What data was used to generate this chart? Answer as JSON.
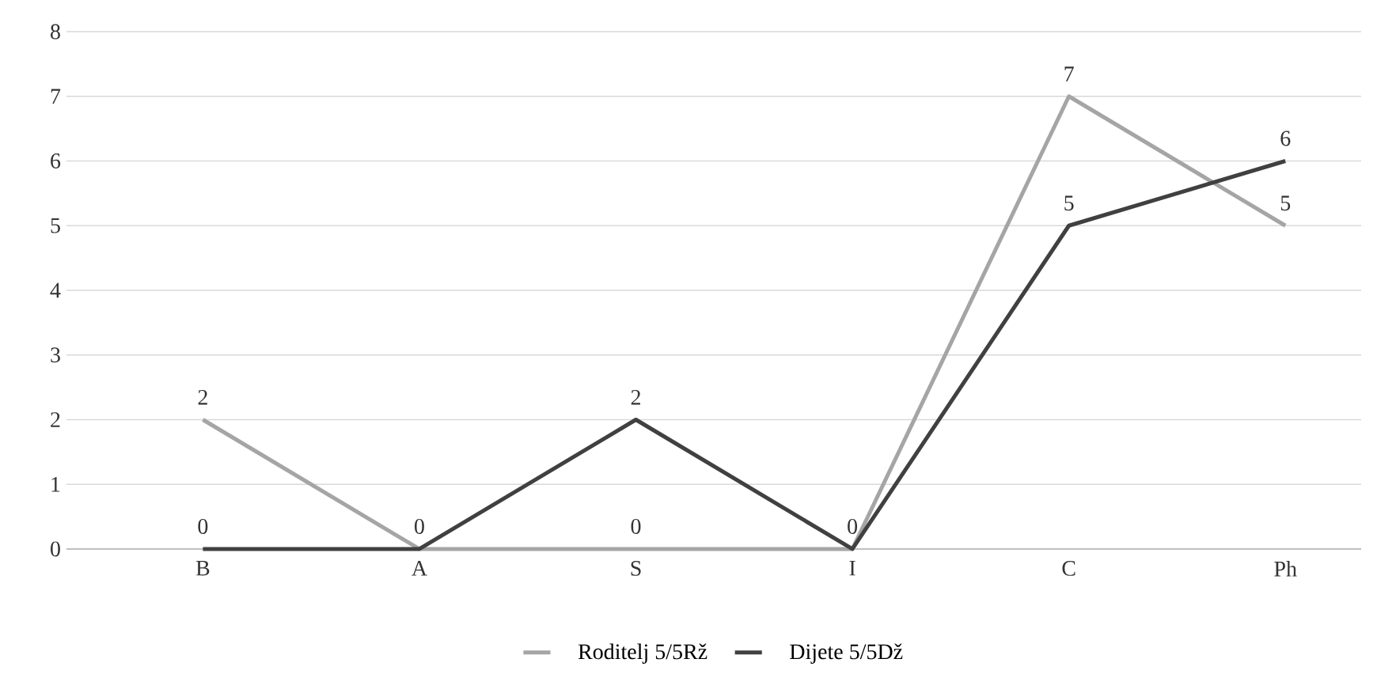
{
  "chart_data": {
    "type": "line",
    "categories": [
      "B",
      "A",
      "S",
      "I",
      "C",
      "Ph"
    ],
    "series": [
      {
        "name": "Roditelj 5/5Rž",
        "color": "#a5a5a5",
        "values": [
          2,
          0,
          0,
          0,
          7,
          5
        ],
        "value_labels": [
          "2",
          null,
          "0",
          null,
          "7",
          "5"
        ]
      },
      {
        "name": "Dijete 5/5Dž",
        "color": "#404040",
        "values": [
          0,
          0,
          2,
          0,
          5,
          6
        ],
        "value_labels": [
          "0",
          "0",
          "2",
          "0",
          "5",
          "6"
        ]
      }
    ],
    "ylim": [
      0,
      8
    ],
    "yticks": [
      0,
      1,
      2,
      3,
      4,
      5,
      6,
      7,
      8
    ],
    "grid": "y",
    "legend": "bottom",
    "marker": "none",
    "line_style": "solid"
  }
}
